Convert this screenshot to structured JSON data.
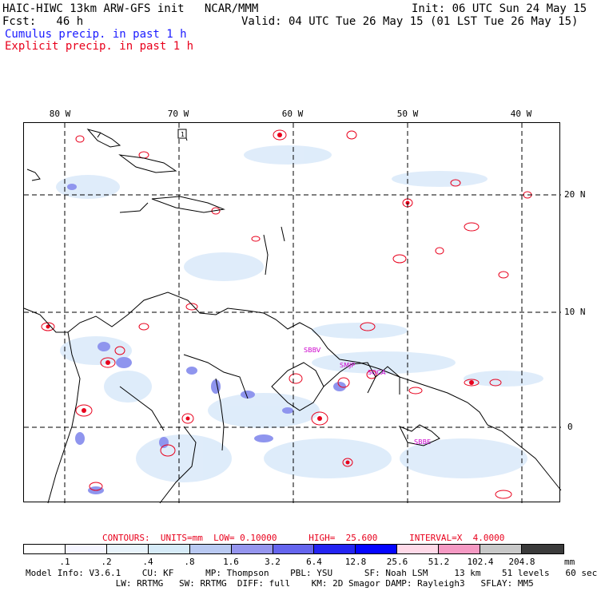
{
  "header": {
    "title": "HAIC-HIWC 13km ARW-GFS init   NCAR/MMM",
    "init": "Init: 06 UTC Sun 24 May 15",
    "fcst": "Fcst:   46 h",
    "valid": "Valid: 04 UTC Tue 26 May 15 (01 LST Tue 26 May 15)",
    "cumulus": "Cumulus precip. in past 1 h",
    "explicit": "Explicit precip. in past 1 h"
  },
  "map": {
    "lon_labels": [
      "80 W",
      "70 W",
      "60 W",
      "50 W",
      "40 W"
    ],
    "lat_labels": [
      "20 N",
      "10 N",
      "0"
    ],
    "stations": [
      "SBBV",
      "SMJP",
      "SOCA",
      "SBBE"
    ],
    "marker": "1"
  },
  "contours": {
    "text": "CONTOURS:  UNITS=mm  LOW= 0.10000      HIGH=  25.600      INTERVAL=X  4.0000"
  },
  "legend": {
    "ticks": [
      ".1",
      ".2",
      ".4",
      ".8",
      "1.6",
      "3.2",
      "6.4",
      "12.8",
      "25.6",
      "51.2",
      "102.4",
      "204.8"
    ],
    "units": "mm",
    "colors": [
      "#ffffff",
      "#f5f5ff",
      "#e8f3fb",
      "#d6ebf8",
      "#b9c9f2",
      "#9595ee",
      "#6565ee",
      "#2424f2",
      "#0505ff",
      "#ffd9e8",
      "#f599c3",
      "#c8c8c8",
      "#3b3b3b",
      "#d6a8ff"
    ]
  },
  "model_info": {
    "line1": "Model Info: V3.6.1    CU: KF      MP: Thompson    PBL: YSU      SF: Noah LSM     13 km    51 levels   60 sec",
    "line2": "                 LW: RRTMG   SW: RRTMG  DIFF: full    KM: 2D Smagor DAMP: Rayleigh3   SFLAY: MM5"
  }
}
